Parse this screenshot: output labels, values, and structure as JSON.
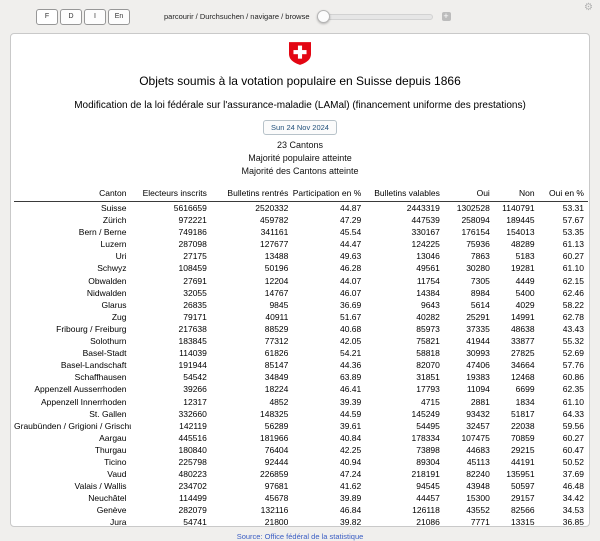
{
  "toolbar": {
    "lang_buttons": [
      "F",
      "D",
      "I",
      "En"
    ],
    "browse_label": "parcourir / Durchsuchen / navigare / browse",
    "plus_label": "+",
    "gear_glyph": "⚙"
  },
  "header": {
    "title": "Objets soumis à la votation populaire en Suisse depuis 1866",
    "subtitle": "Modification de la loi fédérale sur l'assurance-maladie (LAMal) (financement uniforme des prestations)",
    "date_badge": "Sun 24 Nov 2024",
    "cantons_count": "23 Cantons",
    "majority_popular": "Majorité populaire atteinte",
    "majority_cantons": "Majorité des Cantons atteinte"
  },
  "table": {
    "columns": [
      "Canton",
      "Electeurs inscrits",
      "Bulletins rentrés",
      "Participation en %",
      "Bulletins valables",
      "Oui",
      "Non",
      "Oui en %"
    ],
    "rows": [
      [
        "Suisse",
        "5616659",
        "2520332",
        "44.87",
        "2443319",
        "1302528",
        "1140791",
        "53.31"
      ],
      [
        "Zürich",
        "972221",
        "459782",
        "47.29",
        "447539",
        "258094",
        "189445",
        "57.67"
      ],
      [
        "Bern / Berne",
        "749186",
        "341161",
        "45.54",
        "330167",
        "176154",
        "154013",
        "53.35"
      ],
      [
        "Luzern",
        "287098",
        "127677",
        "44.47",
        "124225",
        "75936",
        "48289",
        "61.13"
      ],
      [
        "Uri",
        "27175",
        "13488",
        "49.63",
        "13046",
        "7863",
        "5183",
        "60.27"
      ],
      [
        "Schwyz",
        "108459",
        "50196",
        "46.28",
        "49561",
        "30280",
        "19281",
        "61.10"
      ],
      [
        "Obwalden",
        "27691",
        "12204",
        "44.07",
        "11754",
        "7305",
        "4449",
        "62.15"
      ],
      [
        "Nidwalden",
        "32055",
        "14767",
        "46.07",
        "14384",
        "8984",
        "5400",
        "62.46"
      ],
      [
        "Glarus",
        "26835",
        "9845",
        "36.69",
        "9643",
        "5614",
        "4029",
        "58.22"
      ],
      [
        "Zug",
        "79171",
        "40911",
        "51.67",
        "40282",
        "25291",
        "14991",
        "62.78"
      ],
      [
        "Fribourg / Freiburg",
        "217638",
        "88529",
        "40.68",
        "85973",
        "37335",
        "48638",
        "43.43"
      ],
      [
        "Solothurn",
        "183845",
        "77312",
        "42.05",
        "75821",
        "41944",
        "33877",
        "55.32"
      ],
      [
        "Basel-Stadt",
        "114039",
        "61826",
        "54.21",
        "58818",
        "30993",
        "27825",
        "52.69"
      ],
      [
        "Basel-Landschaft",
        "191944",
        "85147",
        "44.36",
        "82070",
        "47406",
        "34664",
        "57.76"
      ],
      [
        "Schaffhausen",
        "54542",
        "34849",
        "63.89",
        "31851",
        "19383",
        "12468",
        "60.86"
      ],
      [
        "Appenzell Ausserrhoden",
        "39266",
        "18224",
        "46.41",
        "17793",
        "11094",
        "6699",
        "62.35"
      ],
      [
        "Appenzell Innerrhoden",
        "12317",
        "4852",
        "39.39",
        "4715",
        "2881",
        "1834",
        "61.10"
      ],
      [
        "St. Gallen",
        "332660",
        "148325",
        "44.59",
        "145249",
        "93432",
        "51817",
        "64.33"
      ],
      [
        "Graubünden / Grigioni / Grischun",
        "142119",
        "56289",
        "39.61",
        "54495",
        "32457",
        "22038",
        "59.56"
      ],
      [
        "Aargau",
        "445516",
        "181966",
        "40.84",
        "178334",
        "107475",
        "70859",
        "60.27"
      ],
      [
        "Thurgau",
        "180840",
        "76404",
        "42.25",
        "73898",
        "44683",
        "29215",
        "60.47"
      ],
      [
        "Ticino",
        "225798",
        "92444",
        "40.94",
        "89304",
        "45113",
        "44191",
        "50.52"
      ],
      [
        "Vaud",
        "480223",
        "226859",
        "47.24",
        "218191",
        "82240",
        "135951",
        "37.69"
      ],
      [
        "Valais / Wallis",
        "234702",
        "97681",
        "41.62",
        "94545",
        "43948",
        "50597",
        "46.48"
      ],
      [
        "Neuchâtel",
        "114499",
        "45678",
        "39.89",
        "44457",
        "15300",
        "29157",
        "34.42"
      ],
      [
        "Genève",
        "282079",
        "132116",
        "46.84",
        "126118",
        "43552",
        "82566",
        "34.53"
      ],
      [
        "Jura",
        "54741",
        "21800",
        "39.82",
        "21086",
        "7771",
        "13315",
        "36.85"
      ]
    ]
  },
  "footer": {
    "source": "Source: Office fédéral de la statistique"
  },
  "colors": {
    "flag_red": "#e30613",
    "link_blue": "#3a5dc3",
    "badge_text_navy": "#23527c",
    "page_background": "#f0efed"
  }
}
